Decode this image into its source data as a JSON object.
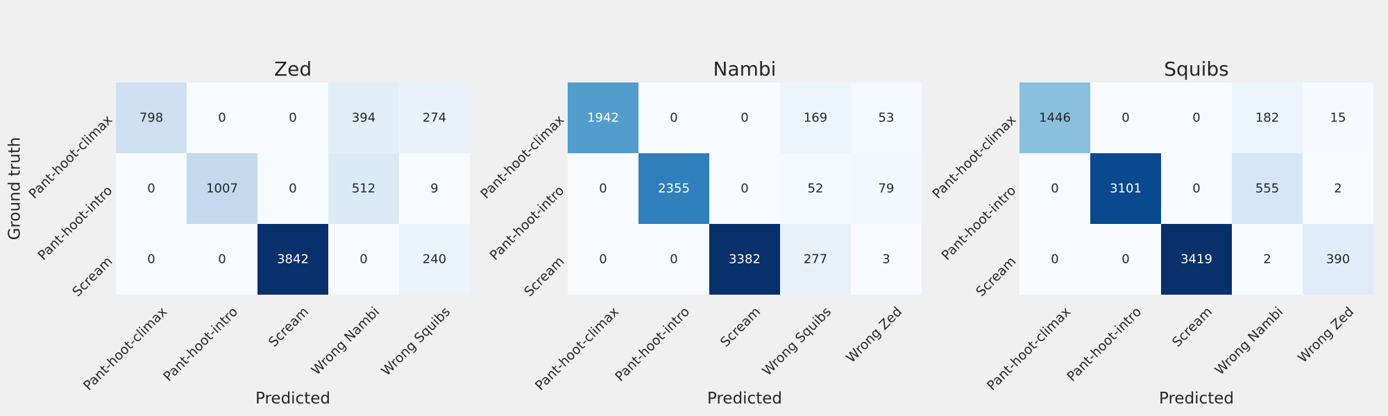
{
  "chart_data": [
    {
      "type": "heatmap",
      "title": "Zed",
      "xlabel": "Predicted",
      "ylabel": "Ground truth",
      "rows": [
        "Pant-hoot-climax",
        "Pant-hoot-intro",
        "Scream"
      ],
      "columns": [
        "Pant-hoot-climax",
        "Pant-hoot-intro",
        "Scream",
        "Wrong Nambi",
        "Wrong Squibs"
      ],
      "values": [
        [
          798,
          0,
          0,
          394,
          274
        ],
        [
          0,
          1007,
          0,
          512,
          9
        ],
        [
          0,
          0,
          3842,
          0,
          240
        ]
      ],
      "colormap": "Blues"
    },
    {
      "type": "heatmap",
      "title": "Nambi",
      "xlabel": "Predicted",
      "ylabel": "",
      "rows": [
        "Pant-hoot-climax",
        "Pant-hoot-intro",
        "Scream"
      ],
      "columns": [
        "Pant-hoot-climax",
        "Pant-hoot-intro",
        "Scream",
        "Wrong Squibs",
        "Wrong Zed"
      ],
      "values": [
        [
          1942,
          0,
          0,
          169,
          53
        ],
        [
          0,
          2355,
          0,
          52,
          79
        ],
        [
          0,
          0,
          3382,
          277,
          3
        ]
      ],
      "colormap": "Blues"
    },
    {
      "type": "heatmap",
      "title": "Squibs",
      "xlabel": "Predicted",
      "ylabel": "",
      "rows": [
        "Pant-hoot-climax",
        "Pant-hoot-intro",
        "Scream"
      ],
      "columns": [
        "Pant-hoot-climax",
        "Pant-hoot-intro",
        "Scream",
        "Wrong Nambi",
        "Wrong Zed"
      ],
      "values": [
        [
          1446,
          0,
          0,
          182,
          15
        ],
        [
          0,
          3101,
          0,
          555,
          2
        ],
        [
          0,
          0,
          3419,
          2,
          390
        ]
      ],
      "colormap": "Blues"
    }
  ],
  "colors": {
    "background": "#f0f0f0",
    "text": "#262626",
    "dark_text": "#262626",
    "light_text": "#ffffff"
  }
}
